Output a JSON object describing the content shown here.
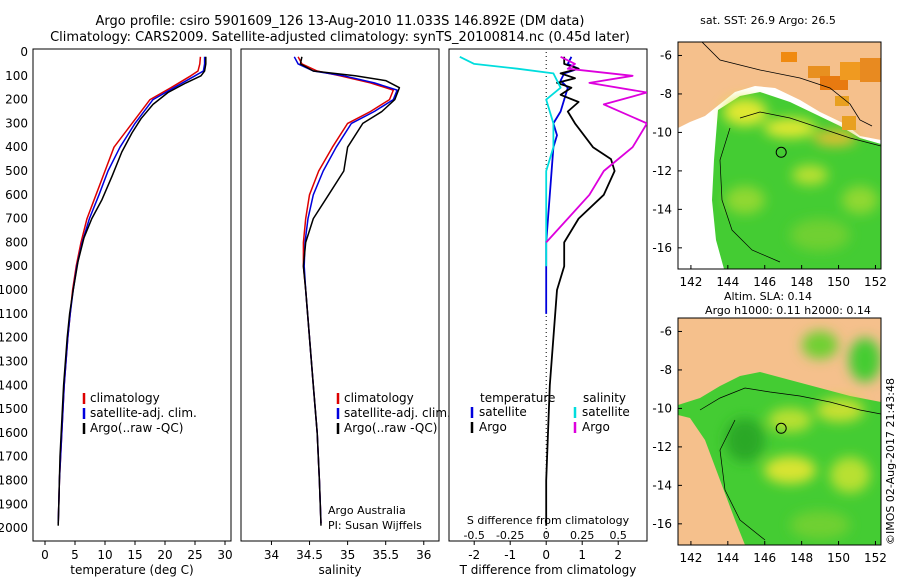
{
  "header": {
    "line1": "Argo profile: csiro 5901609_126 13-Aug-2010 11.033S 146.892E (DM data)",
    "line2": "Climatology: CARS2009. Satellite-adjusted climatology: synTS_20100814.nc (0.45d later)"
  },
  "chart_data": [
    {
      "type": "line",
      "id": "temperature-profile",
      "xlabel": "temperature (deg C)",
      "ylabel": "",
      "xlim": [
        -2,
        31
      ],
      "ylim": [
        2050,
        0
      ],
      "xticks": [
        "0",
        "5",
        "10",
        "15",
        "20",
        "25",
        "30"
      ],
      "xtick_values": [
        0,
        5,
        10,
        15,
        20,
        25,
        30
      ],
      "yticks": [
        "0",
        "100",
        "200",
        "300",
        "400",
        "500",
        "600",
        "700",
        "800",
        "900",
        "1000",
        "1100",
        "1200",
        "1300",
        "1400",
        "1500",
        "1600",
        "1700",
        "1800",
        "1900",
        "2000"
      ],
      "ytick_values": [
        0,
        100,
        200,
        300,
        400,
        500,
        600,
        700,
        800,
        900,
        1000,
        1100,
        1200,
        1300,
        1400,
        1500,
        1600,
        1700,
        1800,
        1900,
        2000
      ],
      "series": [
        {
          "name": "climatology",
          "color": "#dd0000",
          "points": [
            [
              25.9,
              20
            ],
            [
              25.8,
              50
            ],
            [
              25.5,
              80
            ],
            [
              24.3,
              100
            ],
            [
              21,
              150
            ],
            [
              17.5,
              200
            ],
            [
              14.5,
              300
            ],
            [
              11.5,
              400
            ],
            [
              10,
              500
            ],
            [
              8.5,
              600
            ],
            [
              7,
              700
            ],
            [
              6,
              800
            ],
            [
              5.2,
              900
            ],
            [
              4.6,
              1000
            ],
            [
              4.2,
              1100
            ],
            [
              3.8,
              1200
            ],
            [
              3.5,
              1300
            ],
            [
              3.2,
              1400
            ],
            [
              3,
              1500
            ],
            [
              2.8,
              1600
            ],
            [
              2.6,
              1700
            ],
            [
              2.4,
              1800
            ],
            [
              2.3,
              1900
            ],
            [
              2.2,
              1980
            ]
          ]
        },
        {
          "name": "satellite-adj. clim.",
          "color": "#0000dd",
          "points": [
            [
              26.6,
              20
            ],
            [
              26.6,
              50
            ],
            [
              26.4,
              80
            ],
            [
              25,
              100
            ],
            [
              21.5,
              150
            ],
            [
              18,
              200
            ],
            [
              15,
              300
            ],
            [
              12.5,
              400
            ],
            [
              10.5,
              500
            ],
            [
              9,
              600
            ],
            [
              7.4,
              700
            ],
            [
              6.2,
              800
            ],
            [
              5.3,
              900
            ],
            [
              4.7,
              1000
            ],
            [
              4.2,
              1100
            ],
            [
              3.8,
              1200
            ],
            [
              3.5,
              1300
            ],
            [
              3.2,
              1400
            ],
            [
              3,
              1500
            ],
            [
              2.8,
              1600
            ],
            [
              2.6,
              1700
            ],
            [
              2.4,
              1800
            ],
            [
              2.3,
              1900
            ],
            [
              2.2,
              1980
            ]
          ]
        },
        {
          "name": "Argo(..raw -QC)",
          "color": "#000000",
          "points": [
            [
              26.8,
              20
            ],
            [
              26.8,
              50
            ],
            [
              26.6,
              80
            ],
            [
              26,
              100
            ],
            [
              23.5,
              130
            ],
            [
              20.5,
              170
            ],
            [
              18,
              220
            ],
            [
              16,
              280
            ],
            [
              14.5,
              340
            ],
            [
              12.8,
              420
            ],
            [
              11.2,
              520
            ],
            [
              9.5,
              620
            ],
            [
              7.8,
              700
            ],
            [
              6.5,
              780
            ],
            [
              5.5,
              880
            ],
            [
              4.7,
              1000
            ],
            [
              4.1,
              1100
            ],
            [
              3.7,
              1200
            ],
            [
              3.4,
              1300
            ],
            [
              3.1,
              1400
            ],
            [
              2.9,
              1500
            ],
            [
              2.7,
              1600
            ],
            [
              2.5,
              1700
            ],
            [
              2.4,
              1800
            ],
            [
              2.3,
              1900
            ],
            [
              2.2,
              1990
            ]
          ]
        }
      ]
    },
    {
      "type": "line",
      "id": "salinity-profile",
      "xlabel": "salinity",
      "xlim": [
        33.6,
        36.2
      ],
      "ylim": [
        2050,
        0
      ],
      "xticks": [
        "34",
        "34.5",
        "35",
        "35.5",
        "36"
      ],
      "xtick_values": [
        34,
        34.5,
        35,
        35.5,
        36
      ],
      "annotation_line1": "Argo Australia",
      "annotation_line2": "PI: Susan Wijffels",
      "series": [
        {
          "name": "climatology",
          "color": "#dd0000",
          "points": [
            [
              34.35,
              20
            ],
            [
              34.4,
              50
            ],
            [
              34.6,
              80
            ],
            [
              34.9,
              100
            ],
            [
              35.3,
              130
            ],
            [
              35.6,
              160
            ],
            [
              35.55,
              200
            ],
            [
              35.3,
              250
            ],
            [
              35,
              300
            ],
            [
              34.8,
              400
            ],
            [
              34.62,
              500
            ],
            [
              34.5,
              600
            ],
            [
              34.45,
              700
            ],
            [
              34.42,
              800
            ],
            [
              34.42,
              900
            ],
            [
              34.45,
              1000
            ],
            [
              34.5,
              1200
            ],
            [
              34.55,
              1400
            ],
            [
              34.6,
              1600
            ],
            [
              34.63,
              1800
            ],
            [
              34.65,
              1980
            ]
          ]
        },
        {
          "name": "satellite-adj. clim.",
          "color": "#0000dd",
          "points": [
            [
              34.3,
              20
            ],
            [
              34.35,
              50
            ],
            [
              34.55,
              80
            ],
            [
              34.95,
              100
            ],
            [
              35.35,
              130
            ],
            [
              35.65,
              160
            ],
            [
              35.6,
              200
            ],
            [
              35.35,
              250
            ],
            [
              35.05,
              300
            ],
            [
              34.85,
              400
            ],
            [
              34.68,
              500
            ],
            [
              34.55,
              600
            ],
            [
              34.48,
              700
            ],
            [
              34.44,
              800
            ],
            [
              34.43,
              900
            ],
            [
              34.45,
              1000
            ],
            [
              34.5,
              1200
            ],
            [
              34.55,
              1400
            ],
            [
              34.6,
              1600
            ],
            [
              34.63,
              1800
            ],
            [
              34.65,
              1980
            ]
          ]
        },
        {
          "name": "Argo(..raw -QC)",
          "color": "#000000",
          "points": [
            [
              34.4,
              20
            ],
            [
              34.38,
              50
            ],
            [
              34.55,
              80
            ],
            [
              35.1,
              100
            ],
            [
              35.5,
              120
            ],
            [
              35.68,
              150
            ],
            [
              35.62,
              200
            ],
            [
              35.45,
              250
            ],
            [
              35.2,
              300
            ],
            [
              35,
              400
            ],
            [
              34.95,
              500
            ],
            [
              34.75,
              600
            ],
            [
              34.55,
              700
            ],
            [
              34.45,
              800
            ],
            [
              34.42,
              900
            ],
            [
              34.45,
              1000
            ],
            [
              34.5,
              1200
            ],
            [
              34.55,
              1400
            ],
            [
              34.6,
              1600
            ],
            [
              34.63,
              1800
            ],
            [
              34.65,
              1990
            ]
          ]
        }
      ]
    },
    {
      "type": "line",
      "id": "difference-profile",
      "xlabel": "T difference from climatology",
      "top_axis_label": "S difference from climatology",
      "t_xlim": [
        -2.7,
        2.8
      ],
      "t_xticks": [
        "-2",
        "-1",
        "0",
        "1",
        "2"
      ],
      "t_xtick_values": [
        -2,
        -1,
        0,
        1,
        2
      ],
      "s_xticks": [
        "-0.5",
        "-0.25",
        "0",
        "0.25",
        "0.5"
      ],
      "s_xtick_values": [
        -0.5,
        -0.25,
        0,
        0.25,
        0.5
      ],
      "ylim": [
        2050,
        0
      ],
      "legend_temperature_title": "temperature",
      "legend_salinity_title": "salinity",
      "series": [
        {
          "name": "satellite",
          "kind": "temperature",
          "color": "#0000dd",
          "points": [
            [
              0.7,
              20
            ],
            [
              0.6,
              50
            ],
            [
              0.9,
              70
            ],
            [
              0.5,
              90
            ],
            [
              0.4,
              120
            ],
            [
              0.6,
              150
            ],
            [
              0.5,
              200
            ],
            [
              0.4,
              250
            ],
            [
              0.2,
              300
            ],
            [
              0.3,
              350
            ],
            [
              0.2,
              400
            ],
            [
              0.15,
              500
            ],
            [
              0.1,
              600
            ],
            [
              0.05,
              700
            ],
            [
              0,
              800
            ],
            [
              0,
              900
            ],
            [
              0,
              1000
            ],
            [
              0,
              1100
            ]
          ]
        },
        {
          "name": "Argo",
          "kind": "temperature",
          "color": "#000000",
          "points": [
            [
              0.5,
              20
            ],
            [
              0.5,
              50
            ],
            [
              0.9,
              70
            ],
            [
              0.4,
              90
            ],
            [
              0.8,
              110
            ],
            [
              0.3,
              130
            ],
            [
              0.7,
              150
            ],
            [
              0.4,
              180
            ],
            [
              0.9,
              210
            ],
            [
              0.6,
              250
            ],
            [
              0.8,
              300
            ],
            [
              1.3,
              400
            ],
            [
              1.8,
              450
            ],
            [
              1.9,
              500
            ],
            [
              1.6,
              600
            ],
            [
              0.9,
              700
            ],
            [
              0.5,
              800
            ],
            [
              0.5,
              900
            ],
            [
              0.3,
              1000
            ],
            [
              0.2,
              1200
            ],
            [
              0.1,
              1400
            ],
            [
              0.05,
              1600
            ],
            [
              0,
              1800
            ],
            [
              0,
              1990
            ]
          ]
        },
        {
          "name": "satellite",
          "kind": "salinity",
          "color": "#00dddd",
          "points": [
            [
              -0.6,
              20
            ],
            [
              -0.5,
              50
            ],
            [
              -0.2,
              70
            ],
            [
              0.05,
              90
            ],
            [
              0.1,
              150
            ],
            [
              0,
              200
            ],
            [
              0.05,
              300
            ],
            [
              0.05,
              400
            ],
            [
              0,
              500
            ],
            [
              0,
              600
            ],
            [
              0,
              700
            ],
            [
              0,
              800
            ],
            [
              0,
              900
            ]
          ]
        },
        {
          "name": "Argo",
          "kind": "salinity",
          "color": "#dd00dd",
          "points": [
            [
              0.1,
              20
            ],
            [
              0.2,
              50
            ],
            [
              0.15,
              70
            ],
            [
              0.6,
              100
            ],
            [
              0.3,
              130
            ],
            [
              0.7,
              170
            ],
            [
              0.4,
              220
            ],
            [
              0.7,
              300
            ],
            [
              0.6,
              400
            ],
            [
              0.4,
              500
            ],
            [
              0.3,
              600
            ],
            [
              0.15,
              700
            ],
            [
              0,
              800
            ]
          ]
        }
      ]
    },
    {
      "type": "heatmap",
      "id": "sst-map",
      "title": "sat. SST: 26.9  Argo: 26.5",
      "xticks": [
        "142",
        "144",
        "146",
        "148",
        "150",
        "152"
      ],
      "xtick_values": [
        142,
        144,
        146,
        148,
        150,
        152
      ],
      "yticks": [
        "-6",
        "-8",
        "-10",
        "-12",
        "-14",
        "-16"
      ],
      "ytick_values": [
        -6,
        -8,
        -10,
        -12,
        -14,
        -16
      ],
      "xlim": [
        141.3,
        152.3
      ],
      "ylim": [
        -17.1,
        -5.3
      ],
      "profile_location": [
        146.892,
        -11.033
      ]
    },
    {
      "type": "heatmap",
      "id": "sla-map",
      "title_line1": "Altim. SLA: 0.14",
      "title_line2": "Argo h1000: 0.11 h2000: 0.14",
      "xticks": [
        "142",
        "144",
        "146",
        "148",
        "150",
        "152"
      ],
      "xtick_values": [
        142,
        144,
        146,
        148,
        150,
        152
      ],
      "yticks": [
        "-6",
        "-8",
        "-10",
        "-12",
        "-14",
        "-16"
      ],
      "ytick_values": [
        -6,
        -8,
        -10,
        -12,
        -14,
        -16
      ],
      "xlim": [
        141.3,
        152.3
      ],
      "ylim": [
        -17.1,
        -5.3
      ],
      "profile_location": [
        146.892,
        -11.033
      ]
    }
  ],
  "footer": {
    "credit": "©IMOS 02-Aug-2017 21:43:48"
  },
  "colors": {
    "land": "#f5c08c",
    "sea_green": "#44cc33",
    "sea_yellow": "#e0e830",
    "warm_orange": "#e89020"
  }
}
